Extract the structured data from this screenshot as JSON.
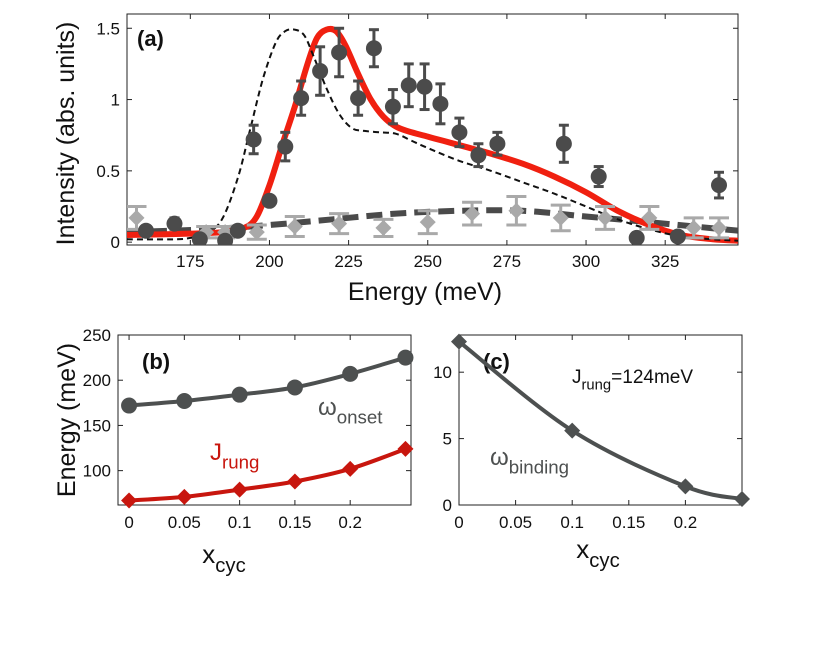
{
  "chart_data": [
    {
      "panel": "(a)",
      "type": "line",
      "xlabel": "Energy (meV)",
      "ylabel": "Intensity (abs. units)",
      "xlim": [
        155,
        348
      ],
      "ylim": [
        -0.02,
        1.6
      ],
      "xticks": [
        175,
        200,
        225,
        250,
        275,
        300,
        325
      ],
      "yticks": [
        0,
        0.5,
        1,
        1.5
      ],
      "ytick_labels": [
        "0",
        "0.5",
        "1",
        "1.5"
      ],
      "series": [
        {
          "name": "data (dark circles)",
          "kind": "points",
          "marker": "circle",
          "color": "#4b4b4b",
          "x": [
            161,
            170,
            178,
            186,
            190,
            195,
            200,
            205,
            210,
            216,
            222,
            228,
            233,
            239,
            244,
            249,
            254,
            260,
            266,
            272,
            293,
            304,
            316,
            329,
            342
          ],
          "y": [
            0.08,
            0.13,
            0.02,
            0.01,
            0.08,
            0.72,
            0.29,
            0.67,
            1.01,
            1.2,
            1.33,
            1.01,
            1.36,
            0.95,
            1.1,
            1.09,
            0.97,
            0.77,
            0.61,
            0.69,
            0.69,
            0.46,
            0.03,
            0.04,
            0.4
          ],
          "err": [
            0,
            0.04,
            0,
            0,
            0,
            0.1,
            0,
            0.1,
            0.12,
            0.17,
            0.17,
            0.12,
            0.13,
            0.12,
            0.15,
            0.16,
            0.14,
            0.1,
            0.08,
            0.08,
            0.13,
            0.07,
            0.03,
            0.02,
            0.09
          ]
        },
        {
          "name": "background (light diamonds)",
          "kind": "points",
          "marker": "diamond",
          "color": "#a9a9a9",
          "x": [
            158,
            180,
            186,
            196,
            208,
            222,
            236,
            250,
            264,
            278,
            292,
            306,
            320,
            334,
            342
          ],
          "y": [
            0.17,
            0.07,
            0.07,
            0.07,
            0.11,
            0.13,
            0.1,
            0.14,
            0.2,
            0.22,
            0.17,
            0.17,
            0.17,
            0.1,
            0.1
          ],
          "err": [
            0.08,
            0.04,
            0.04,
            0.05,
            0.07,
            0.07,
            0.06,
            0.08,
            0.08,
            0.1,
            0.09,
            0.08,
            0.08,
            0.07,
            0.07
          ]
        },
        {
          "name": "red model",
          "kind": "line",
          "style": "solid",
          "color": "#f02010",
          "x": [
            155,
            175,
            185,
            192,
            196,
            200,
            204,
            208,
            212,
            215,
            218,
            221,
            224,
            228,
            232,
            236,
            240,
            245,
            250,
            255,
            260,
            265,
            270,
            280,
            290,
            300,
            310,
            320,
            330,
            340,
            348
          ],
          "y": [
            0.05,
            0.06,
            0.07,
            0.1,
            0.18,
            0.4,
            0.68,
            0.95,
            1.25,
            1.43,
            1.49,
            1.48,
            1.38,
            1.18,
            1.0,
            0.88,
            0.81,
            0.77,
            0.74,
            0.71,
            0.68,
            0.65,
            0.62,
            0.55,
            0.46,
            0.35,
            0.22,
            0.12,
            0.05,
            0.02,
            0.01
          ]
        },
        {
          "name": "black dashed model",
          "kind": "line",
          "style": "dashed",
          "color": "#111111",
          "x": [
            155,
            170,
            175,
            180,
            185,
            190,
            194,
            198,
            202,
            205,
            208,
            211,
            214,
            218,
            222,
            226,
            230,
            235,
            240,
            245,
            250,
            260,
            270,
            280,
            290,
            300,
            310,
            320,
            330,
            340,
            348
          ],
          "y": [
            0.02,
            0.02,
            0.03,
            0.06,
            0.16,
            0.45,
            0.8,
            1.15,
            1.4,
            1.48,
            1.49,
            1.45,
            1.3,
            1.08,
            0.9,
            0.8,
            0.78,
            0.77,
            0.76,
            0.71,
            0.66,
            0.57,
            0.5,
            0.42,
            0.34,
            0.25,
            0.16,
            0.09,
            0.04,
            0.02,
            0.01
          ]
        },
        {
          "name": "background fit",
          "kind": "line",
          "style": "dashed-thick",
          "color": "#4a4a4a",
          "x": [
            155,
            180,
            200,
            220,
            240,
            260,
            280,
            300,
            320,
            348
          ],
          "y": [
            0.07,
            0.09,
            0.12,
            0.16,
            0.2,
            0.22,
            0.22,
            0.18,
            0.14,
            0.08
          ]
        }
      ]
    },
    {
      "panel": "(b)",
      "type": "line",
      "xlabel": "x",
      "xlabel_sub": "cyc",
      "ylabel": "Energy (meV)",
      "xlim": [
        -0.01,
        0.255
      ],
      "ylim": [
        62,
        250
      ],
      "xticks": [
        0,
        0.05,
        0.1,
        0.15,
        0.2
      ],
      "xtick_labels": [
        "0",
        "0.05",
        "0.1",
        "0.15",
        "0.2"
      ],
      "yticks": [
        100,
        150,
        200,
        250
      ],
      "series": [
        {
          "name": "ω_onset",
          "label_main": "ω",
          "label_sub": "onset",
          "marker": "circle",
          "color": "#4d5050",
          "x": [
            0,
            0.05,
            0.1,
            0.15,
            0.2,
            0.25
          ],
          "y": [
            172,
            177,
            184,
            192,
            207,
            225
          ]
        },
        {
          "name": "J_rung",
          "label_main": "J",
          "label_sub": "rung",
          "marker": "diamond",
          "color": "#c8160e",
          "x": [
            0,
            0.05,
            0.1,
            0.15,
            0.2,
            0.25
          ],
          "y": [
            67,
            71,
            79,
            88,
            102,
            124
          ]
        }
      ]
    },
    {
      "panel": "(c)",
      "type": "line",
      "xlabel": "x",
      "xlabel_sub": "cyc",
      "ylabel": "",
      "annotation": {
        "main": "J",
        "sub": "rung",
        "rest": "=124meV"
      },
      "xlim": [
        0,
        0.25
      ],
      "ylim": [
        0,
        12.8
      ],
      "xticks": [
        0,
        0.05,
        0.1,
        0.15,
        0.2
      ],
      "xtick_labels": [
        "0",
        "0.05",
        "0.1",
        "0.15",
        "0.2"
      ],
      "yticks": [
        0,
        5,
        10
      ],
      "series": [
        {
          "name": "ω_binding",
          "label_main": "ω",
          "label_sub": "binding",
          "marker": "diamond",
          "color": "#4d5050",
          "x": [
            0,
            0.1,
            0.2,
            0.25
          ],
          "y": [
            12.3,
            5.6,
            1.4,
            0.45
          ]
        }
      ]
    }
  ]
}
